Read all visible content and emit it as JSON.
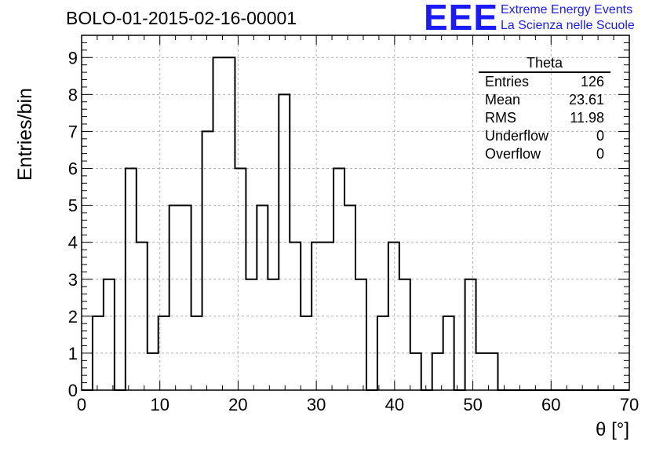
{
  "header": {
    "run_title": "BOLO-01-2015-02-16-00001",
    "logo_mark": "EEE",
    "logo_line1": "Extreme Energy Events",
    "logo_line2": "La Scienza nelle Scuole"
  },
  "stats_box": {
    "title": "Theta",
    "rows": [
      {
        "label": "Entries",
        "value": "126"
      },
      {
        "label": "Mean",
        "value": "23.61"
      },
      {
        "label": "RMS",
        "value": "11.98"
      },
      {
        "label": "Underflow",
        "value": "0"
      },
      {
        "label": "Overflow",
        "value": "0"
      }
    ]
  },
  "colors": {
    "logo_blue": "#1a1aff",
    "line": "#000000",
    "grid": "#b4b4b4"
  },
  "chart_data": {
    "type": "bar",
    "histogram": true,
    "title": "BOLO-01-2015-02-16-00001",
    "xlabel": "θ [°]",
    "ylabel": "Entries/bin",
    "xlim": [
      0,
      70
    ],
    "ylim": [
      0,
      9.6
    ],
    "grid": true,
    "bin_edges": [
      0,
      1.4,
      2.8,
      4.2,
      5.6,
      7,
      8.4,
      9.8,
      11.2,
      12.6,
      14,
      15.4,
      16.8,
      18.2,
      19.6,
      21,
      22.4,
      23.8,
      25.2,
      26.6,
      28,
      29.4,
      30.8,
      32.2,
      33.6,
      35,
      36.4,
      37.8,
      39.2,
      40.6,
      42,
      43.4,
      44.8,
      46.2,
      47.6,
      49,
      50.4,
      51.8,
      53.2,
      54.6,
      56,
      57.4,
      58.8,
      60.2,
      61.6,
      63,
      64.4,
      65.8,
      67.2,
      68.6,
      70
    ],
    "values": [
      0,
      2,
      3,
      0,
      6,
      4,
      1,
      2,
      5,
      5,
      2,
      7,
      9,
      9,
      6,
      3,
      5,
      3,
      8,
      4,
      2,
      4,
      4,
      6,
      5,
      3,
      0,
      2,
      4,
      3,
      1,
      0,
      1,
      2,
      0,
      3,
      1,
      1,
      0,
      0,
      0,
      0,
      0,
      0,
      0,
      0,
      0,
      0,
      0,
      0
    ],
    "x_ticks": [
      "0",
      "10",
      "20",
      "30",
      "40",
      "50",
      "60",
      "70"
    ],
    "y_ticks": [
      "0",
      "1",
      "2",
      "3",
      "4",
      "5",
      "6",
      "7",
      "8",
      "9"
    ],
    "legend": "top-right"
  }
}
